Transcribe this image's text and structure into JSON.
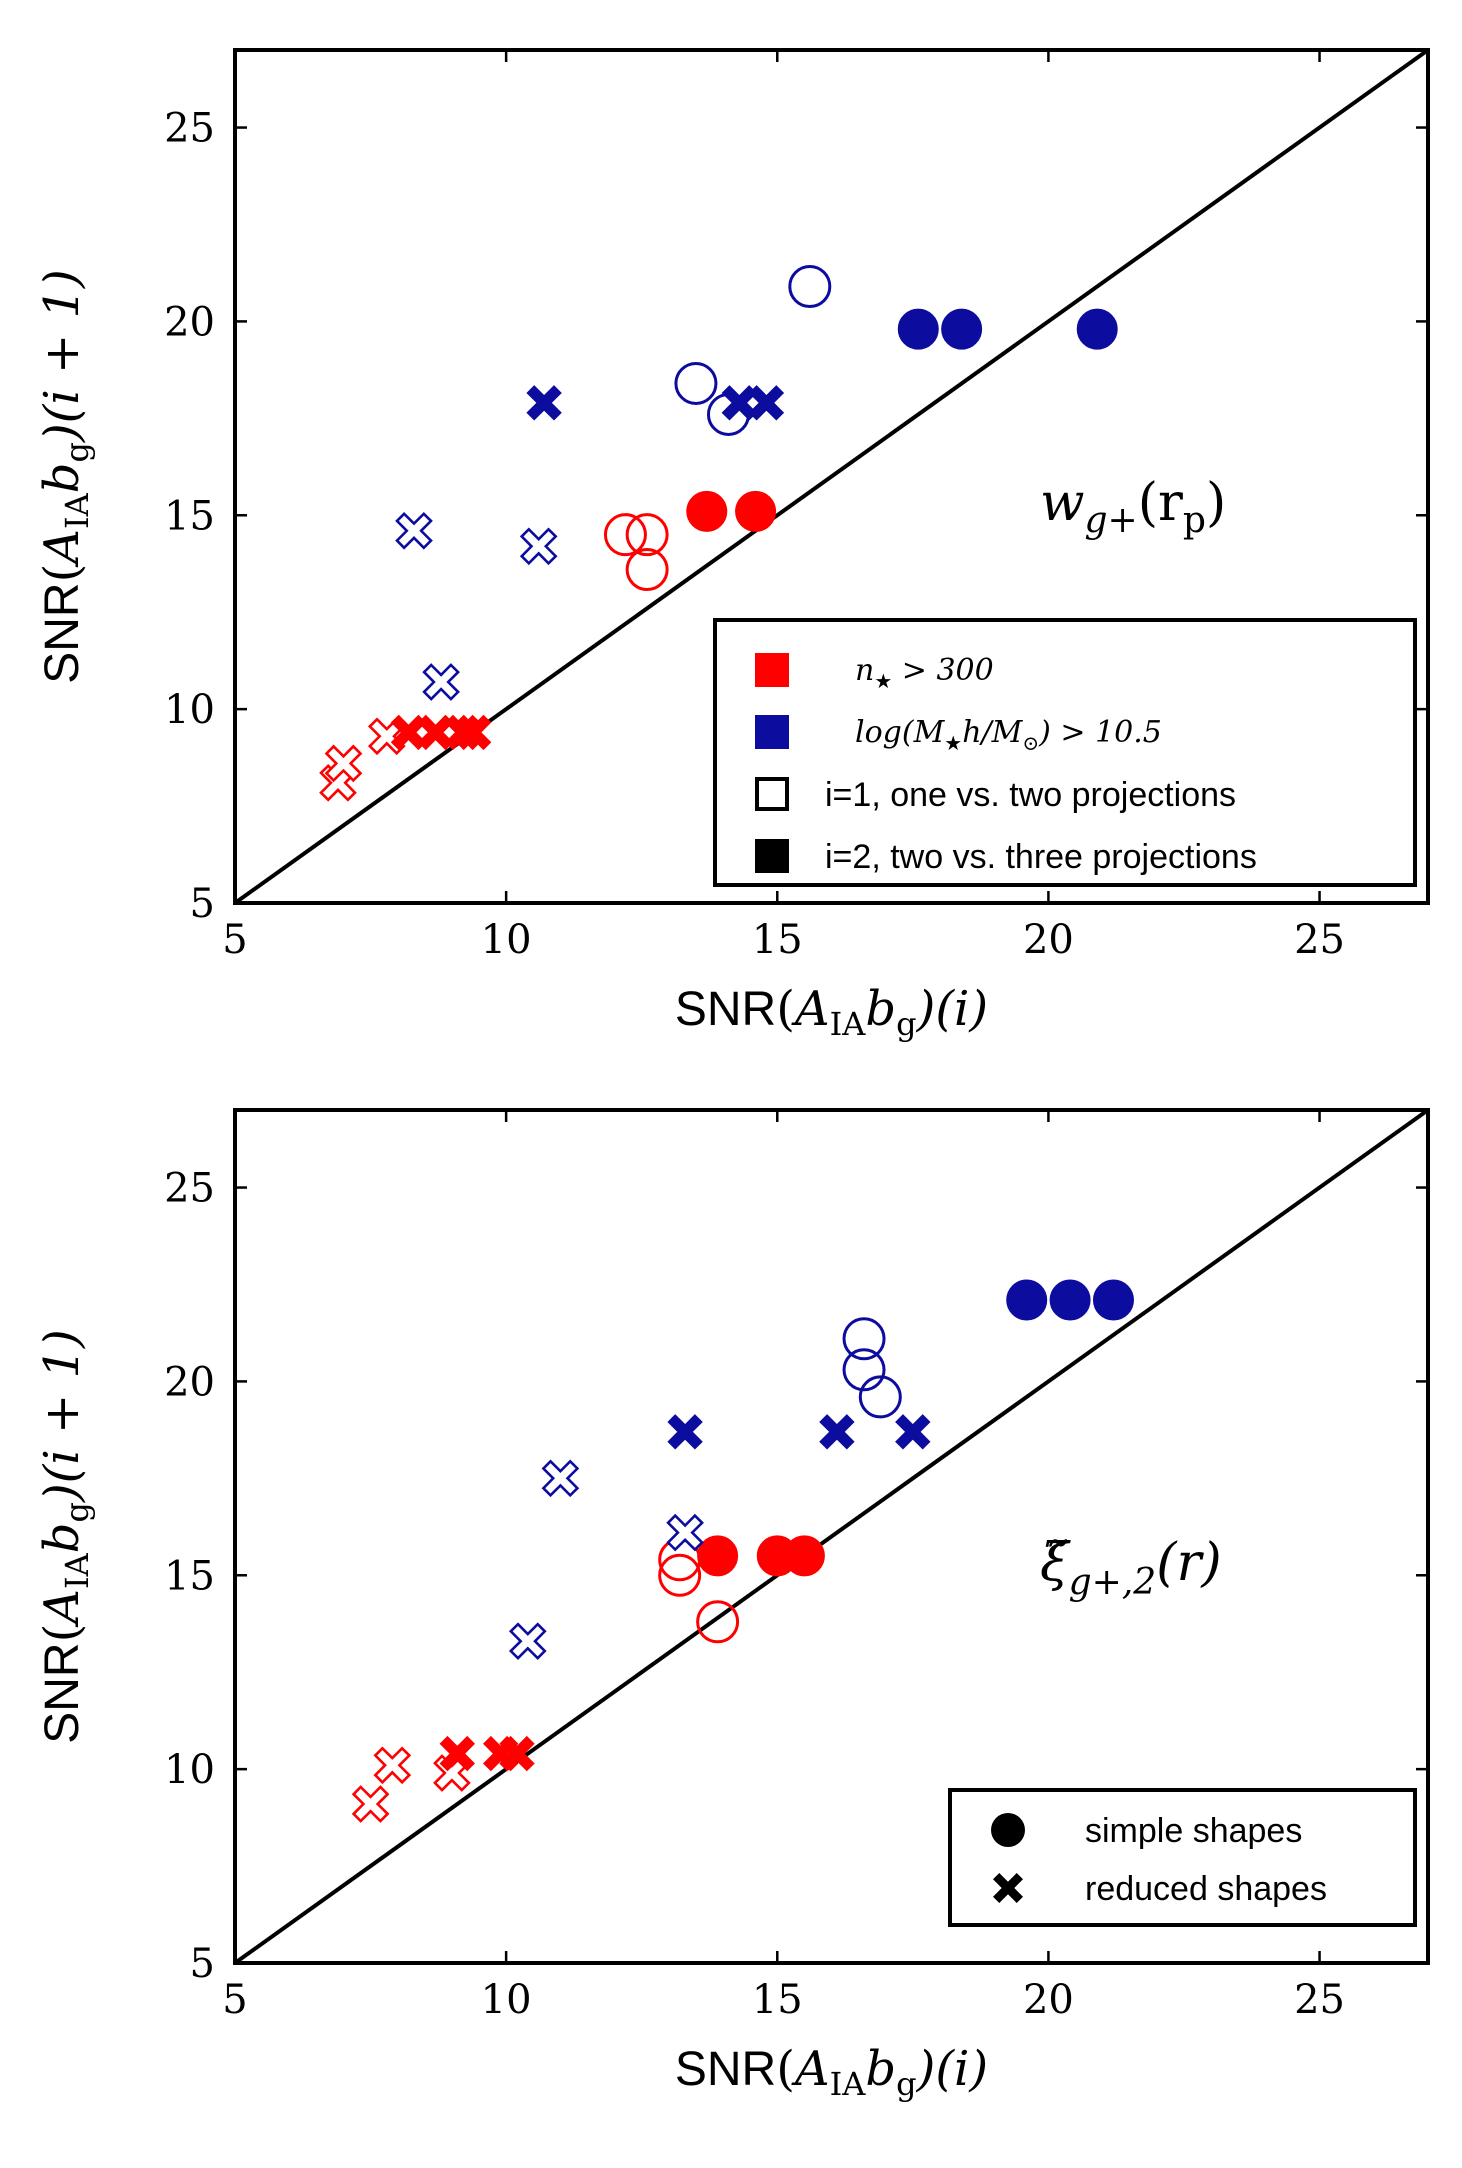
{
  "colors": {
    "red": "#ff0000",
    "blue": "#0c0c9e",
    "black": "#000000"
  },
  "chart_data": [
    {
      "type": "scatter",
      "panel": "top",
      "annotation": {
        "main": "w",
        "sub": "g+",
        "arg": "(r",
        "arg_sub": "p",
        "arg_close": ")"
      },
      "xlim": [
        5,
        27
      ],
      "ylim": [
        5,
        27
      ],
      "xticks": [
        5,
        10,
        15,
        20,
        25
      ],
      "yticks": [
        5,
        10,
        15,
        20,
        25
      ],
      "xticklabels": [
        "5",
        "10",
        "15",
        "20",
        "25"
      ],
      "yticklabels": [
        "5",
        "10",
        "15",
        "20",
        "25"
      ],
      "xlabel": {
        "prefix": "SNR",
        "open": "(",
        "main": "A",
        "sub": "IA",
        "b": "b",
        "b_sub": "g",
        "close": ")(i)"
      },
      "ylabel": {
        "prefix": "SNR",
        "open": "(",
        "main": "A",
        "sub": "IA",
        "b": "b",
        "b_sub": "g",
        "close": ")(i + 1)"
      },
      "diagonal": "y = x",
      "series": [
        {
          "name": "red open circle (n> 300, i=1, simple shapes)",
          "color": "red",
          "marker": "circle",
          "fill": false,
          "x": [
            12.2,
            12.6,
            12.6
          ],
          "y": [
            14.5,
            14.5,
            13.6
          ]
        },
        {
          "name": "red filled circle (n> 300, i=2, simple shapes)",
          "color": "red",
          "marker": "circle",
          "fill": true,
          "x": [
            13.7,
            14.6
          ],
          "y": [
            15.1,
            15.1
          ]
        },
        {
          "name": "red open cross (n> 300, i=1, reduced shapes)",
          "color": "red",
          "marker": "cross",
          "fill": false,
          "x": [
            6.9,
            7.0,
            7.8
          ],
          "y": [
            8.1,
            8.6,
            9.3
          ]
        },
        {
          "name": "red filled cross (n> 300, i=2, reduced shapes)",
          "color": "red",
          "marker": "cross",
          "fill": true,
          "x": [
            8.2,
            8.7,
            9.2,
            9.4
          ],
          "y": [
            9.4,
            9.4,
            9.4,
            9.4
          ]
        },
        {
          "name": "blue open circle (mass cut, i=1, simple shapes)",
          "color": "blue",
          "marker": "circle",
          "fill": false,
          "x": [
            13.5,
            14.1,
            15.6
          ],
          "y": [
            18.4,
            17.6,
            20.9
          ]
        },
        {
          "name": "blue filled circle (mass cut, i=2, simple shapes)",
          "color": "blue",
          "marker": "circle",
          "fill": true,
          "x": [
            17.6,
            18.4,
            20.9
          ],
          "y": [
            19.8,
            19.8,
            19.8
          ]
        },
        {
          "name": "blue open cross (mass cut, i=1, reduced shapes)",
          "color": "blue",
          "marker": "cross",
          "fill": false,
          "x": [
            8.3,
            8.8,
            10.6
          ],
          "y": [
            14.6,
            10.7,
            14.2
          ]
        },
        {
          "name": "blue filled cross (mass cut, i=2, reduced shapes)",
          "color": "blue",
          "marker": "cross",
          "fill": true,
          "x": [
            10.7,
            14.3,
            14.8
          ],
          "y": [
            17.9,
            17.9,
            17.9
          ]
        }
      ],
      "legend": {
        "placement": "lower-right",
        "entries": [
          {
            "swatch": "red",
            "kind": "math",
            "text": "n",
            "sub": "★",
            "rest": " > 300"
          },
          {
            "swatch": "blue",
            "kind": "math",
            "text": "log(M",
            "sub": "★",
            "rest": "h/M",
            "rest_sub": "⊙",
            "tail": ") > 10.5"
          },
          {
            "swatch": "open",
            "kind": "text",
            "text": "i=1, one vs. two projections"
          },
          {
            "swatch": "black",
            "kind": "text",
            "text": "i=2, two vs. three projections"
          }
        ]
      }
    },
    {
      "type": "scatter",
      "panel": "bottom",
      "annotation": {
        "main": "ξ̃",
        "sub": "g+,2",
        "arg": "(r)"
      },
      "xlim": [
        5,
        27
      ],
      "ylim": [
        5,
        27
      ],
      "xticks": [
        5,
        10,
        15,
        20,
        25
      ],
      "yticks": [
        5,
        10,
        15,
        20,
        25
      ],
      "xticklabels": [
        "5",
        "10",
        "15",
        "20",
        "25"
      ],
      "yticklabels": [
        "5",
        "10",
        "15",
        "20",
        "25"
      ],
      "xlabel": {
        "prefix": "SNR",
        "open": "(",
        "main": "A",
        "sub": "IA",
        "b": "b",
        "b_sub": "g",
        "close": ")(i)"
      },
      "ylabel": {
        "prefix": "SNR",
        "open": "(",
        "main": "A",
        "sub": "IA",
        "b": "b",
        "b_sub": "g",
        "close": ")(i + 1)"
      },
      "diagonal": "y = x",
      "series": [
        {
          "name": "red open circle",
          "color": "red",
          "marker": "circle",
          "fill": false,
          "x": [
            13.2,
            13.2,
            13.9
          ],
          "y": [
            15.0,
            15.4,
            13.8
          ]
        },
        {
          "name": "red filled circle",
          "color": "red",
          "marker": "circle",
          "fill": true,
          "x": [
            13.9,
            15.0,
            15.5
          ],
          "y": [
            15.5,
            15.5,
            15.5
          ]
        },
        {
          "name": "red open cross",
          "color": "red",
          "marker": "cross",
          "fill": false,
          "x": [
            7.5,
            7.9,
            9.0
          ],
          "y": [
            9.1,
            10.1,
            9.9
          ]
        },
        {
          "name": "red filled cross",
          "color": "red",
          "marker": "cross",
          "fill": true,
          "x": [
            9.1,
            9.9,
            10.2
          ],
          "y": [
            10.4,
            10.4,
            10.4
          ]
        },
        {
          "name": "blue open circle",
          "color": "blue",
          "marker": "circle",
          "fill": false,
          "x": [
            16.6,
            16.6,
            16.9
          ],
          "y": [
            21.1,
            20.3,
            19.6
          ]
        },
        {
          "name": "blue filled circle",
          "color": "blue",
          "marker": "circle",
          "fill": true,
          "x": [
            19.6,
            20.4,
            21.2
          ],
          "y": [
            22.1,
            22.1,
            22.1
          ]
        },
        {
          "name": "blue open cross",
          "color": "blue",
          "marker": "cross",
          "fill": false,
          "x": [
            11.0,
            10.4,
            13.3
          ],
          "y": [
            17.5,
            13.3,
            16.1
          ]
        },
        {
          "name": "blue filled cross",
          "color": "blue",
          "marker": "cross",
          "fill": true,
          "x": [
            13.3,
            16.1,
            17.5
          ],
          "y": [
            18.7,
            18.7,
            18.7
          ]
        }
      ],
      "legend": {
        "placement": "lower-right",
        "entries": [
          {
            "swatch": "circle",
            "kind": "text",
            "text": "simple shapes"
          },
          {
            "swatch": "cross",
            "kind": "text",
            "text": "reduced shapes"
          }
        ]
      }
    }
  ]
}
